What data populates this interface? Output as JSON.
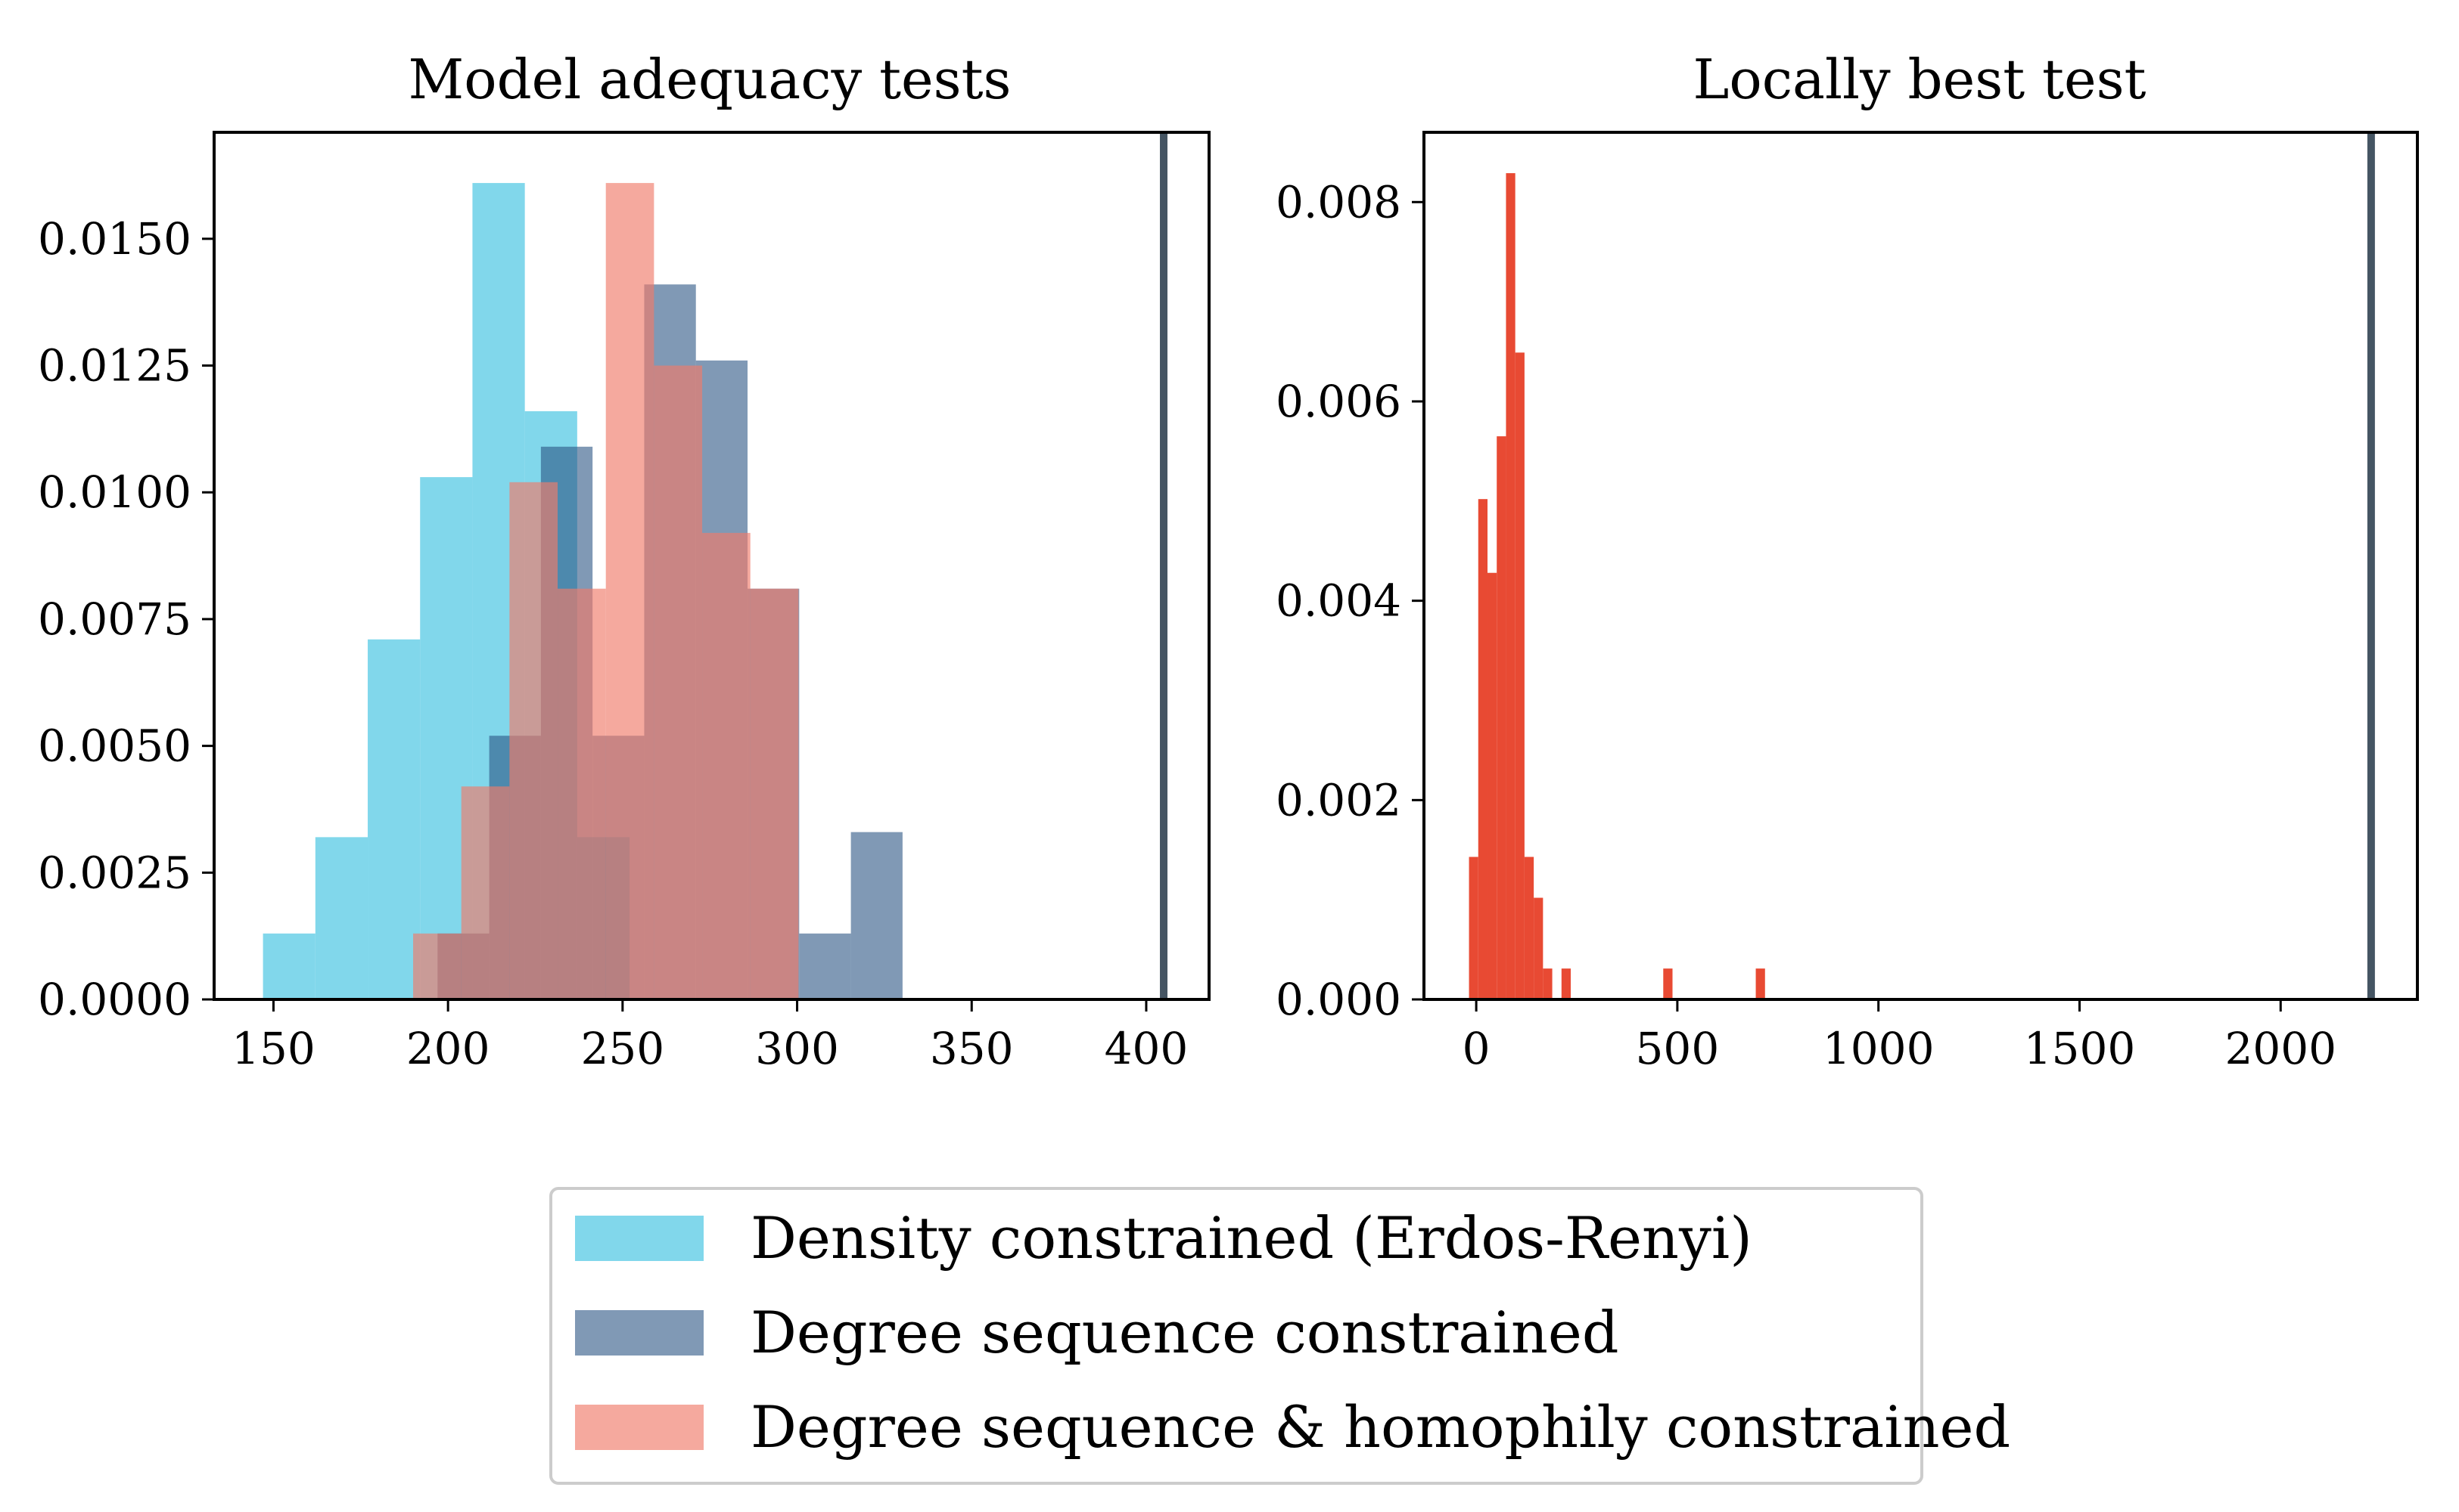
{
  "chart_data": [
    {
      "type": "bar",
      "title": "Model adequacy tests",
      "xlabel": "",
      "ylabel": "",
      "xlim": [
        133,
        418
      ],
      "ylim": [
        0,
        0.0171
      ],
      "xticks": [
        150,
        200,
        250,
        300,
        350,
        400
      ],
      "yticks": [
        0,
        0.0025,
        0.005,
        0.0075,
        0.01,
        0.0125,
        0.015
      ],
      "ytick_labels": [
        "0.0000",
        "0.0025",
        "0.0050",
        "0.0075",
        "0.0100",
        "0.0125",
        "0.0150"
      ],
      "grid": false,
      "series": [
        {
          "name": "Density constrained (Erdos-Renyi)",
          "color": "#62cde6",
          "opacity": 0.8,
          "bin_edges": [
            147,
            162,
            177,
            192,
            207,
            222,
            237,
            252
          ],
          "values": [
            0.0013,
            0.0032,
            0.0071,
            0.0103,
            0.0161,
            0.0116,
            0.0032
          ]
        },
        {
          "name": "Degree sequence constrained",
          "color": "#2c5584",
          "opacity": 0.6,
          "bin_edges": [
            197,
            211.8,
            226.6,
            241.4,
            256.2,
            271,
            285.8,
            300.6,
            315.4,
            330.2
          ],
          "values": [
            0.0013,
            0.0052,
            0.0109,
            0.0052,
            0.0141,
            0.0126,
            0.0081,
            0.0013,
            0.0033
          ]
        },
        {
          "name": "Degree sequence & homophily constrained",
          "color": "#f07b6a",
          "opacity": 0.65,
          "bin_edges": [
            190,
            203.8,
            217.6,
            231.4,
            245.2,
            259,
            272.8,
            286.6,
            300.4
          ],
          "values": [
            0.0013,
            0.0042,
            0.0102,
            0.0081,
            0.0161,
            0.0125,
            0.0092,
            0.0081
          ]
        }
      ],
      "vline": {
        "x": 405,
        "color": "#455563"
      }
    },
    {
      "type": "bar",
      "title": "Locally best test",
      "xlabel": "",
      "ylabel": "",
      "xlim": [
        -130,
        2340
      ],
      "ylim": [
        0,
        0.0087
      ],
      "xticks": [
        0,
        500,
        1000,
        1500,
        2000
      ],
      "yticks": [
        0,
        0.002,
        0.004,
        0.006,
        0.008
      ],
      "ytick_labels": [
        "0.000",
        "0.002",
        "0.004",
        "0.006",
        "0.008"
      ],
      "grid": false,
      "series": [
        {
          "color": "#e84a33",
          "opacity": 1,
          "bin_edges": [
            -18,
            5,
            28,
            51,
            74,
            97,
            120,
            143,
            166,
            189,
            212,
            235,
            258,
            281,
            304,
            327,
            350,
            373,
            396,
            419,
            442,
            465,
            488,
            511,
            534,
            557,
            580,
            603,
            626,
            649,
            672,
            695,
            718
          ],
          "values": [
            0.00143,
            0.00502,
            0.00428,
            0.00565,
            0.00829,
            0.00649,
            0.00143,
            0.00102,
            0.00031,
            0,
            0.00031,
            0,
            0,
            0,
            0,
            0,
            0,
            0,
            0,
            0,
            0,
            0.00031,
            0,
            0,
            0,
            0,
            0,
            0,
            0,
            0,
            0,
            0.00031
          ]
        }
      ],
      "vline": {
        "x": 2225,
        "color": "#455563"
      }
    }
  ],
  "legend": {
    "position": "bottom-center",
    "items": [
      {
        "label": "Density constrained (Erdos-Renyi)",
        "color": "#62cde6",
        "opacity": 0.8
      },
      {
        "label": "Degree sequence constrained",
        "color": "#2c5584",
        "opacity": 0.6
      },
      {
        "label": "Degree sequence & homophily constrained",
        "color": "#f07b6a",
        "opacity": 0.65
      }
    ]
  }
}
